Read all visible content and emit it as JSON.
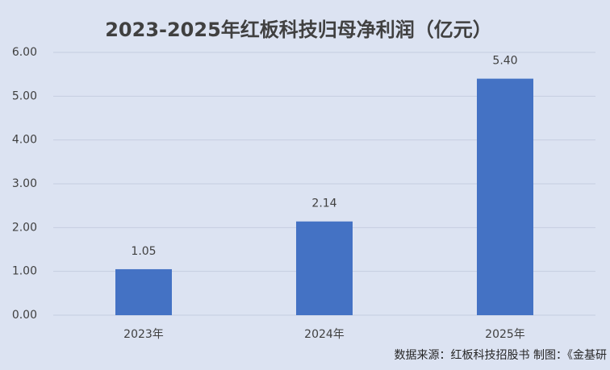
{
  "chart_data": {
    "type": "bar",
    "title": "2023-2025年红板科技归母净利润（亿元）",
    "categories": [
      "2023年",
      "2024年",
      "2025年"
    ],
    "values": [
      1.05,
      2.14,
      5.4
    ],
    "value_labels": [
      "1.05",
      "2.14",
      "5.40"
    ],
    "color": "#4472c4",
    "ylim": [
      0,
      6
    ],
    "yticks": [
      {
        "value": 0,
        "label": "0.00"
      },
      {
        "value": 1,
        "label": "1.00"
      },
      {
        "value": 2,
        "label": "2.00"
      },
      {
        "value": 3,
        "label": "3.00"
      },
      {
        "value": 4,
        "label": "4.00"
      },
      {
        "value": 5,
        "label": "5.00"
      },
      {
        "value": 6,
        "label": "6.00"
      }
    ],
    "grid": true,
    "source": "数据来源：红板科技招股书  制图：《金基研"
  }
}
